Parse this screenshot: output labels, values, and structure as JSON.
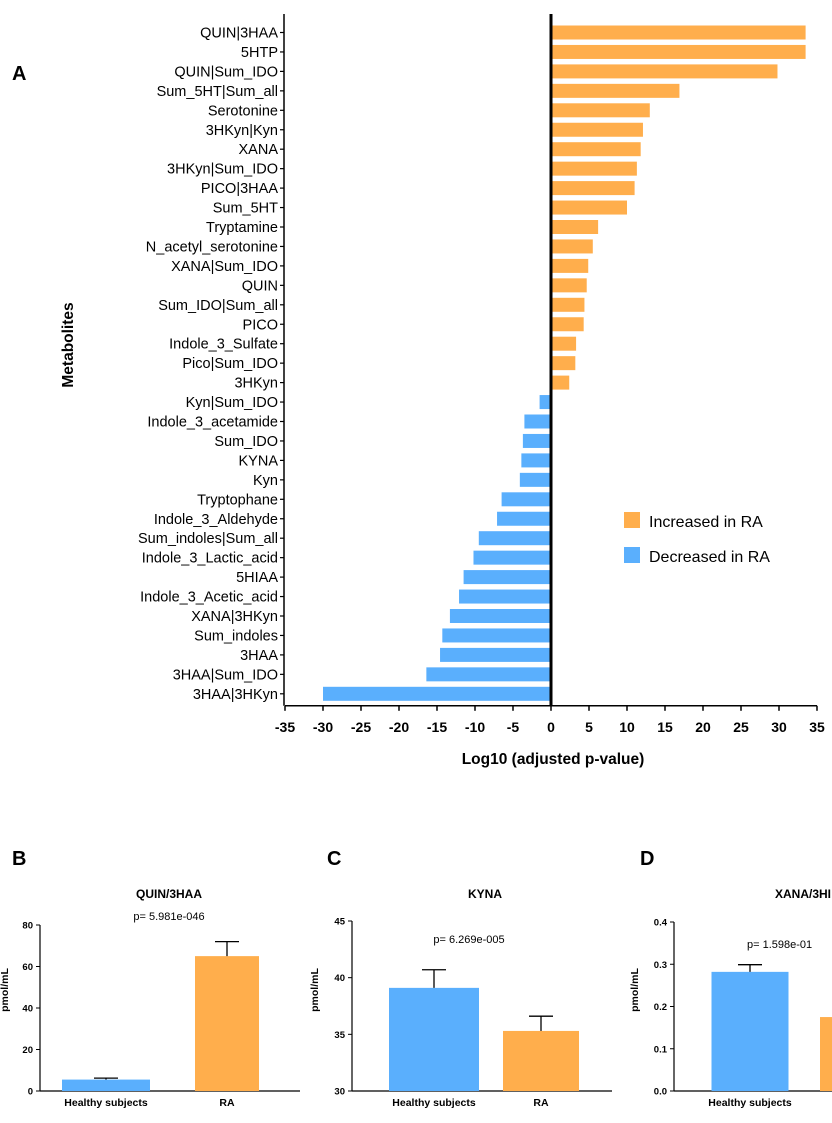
{
  "colors": {
    "increased": "#FFAE4C",
    "decreased": "#5AAFFD",
    "axis": "#000000"
  },
  "panel_labels": {
    "A": "A",
    "B": "B",
    "C": "C",
    "D": "D"
  },
  "legend": {
    "increased": "Increased in RA",
    "decreased": "Decreased in RA"
  },
  "chart_data": [
    {
      "panel": "A",
      "type": "bar",
      "orientation": "horizontal",
      "xlabel": "Log10 (adjusted p-value)",
      "ylabel": "Metabolites",
      "xlim": [
        -35,
        35
      ],
      "xticks": [
        -35,
        -30,
        -25,
        -20,
        -15,
        -10,
        -5,
        0,
        5,
        10,
        15,
        20,
        25,
        30,
        35
      ],
      "legend_position": "right",
      "categories": [
        "QUIN|3HAA",
        "5HTP",
        "QUIN|Sum_IDO",
        "Sum_5HT|Sum_all",
        "Serotonine",
        "3HKyn|Kyn",
        "XANA",
        "3HKyn|Sum_IDO",
        "PICO|3HAA",
        "Sum_5HT",
        "Tryptamine",
        "N_acetyl_serotonine",
        "XANA|Sum_IDO",
        "QUIN",
        "Sum_IDO|Sum_all",
        "PICO",
        "Indole_3_Sulfate",
        "Pico|Sum_IDO",
        "3HKyn",
        "Kyn|Sum_IDO",
        "Indole_3_acetamide",
        "Sum_IDO",
        "KYNA",
        "Kyn",
        "Tryptophane",
        "Indole_3_Aldehyde",
        "Sum_indoles|Sum_all",
        "Indole_3_Lactic_acid",
        "5HIAA",
        "Indole_3_Acetic_acid",
        "XANA|3HKyn",
        "Sum_indoles",
        "3HAA",
        "3HAA|Sum_IDO",
        "3HAA|3HKyn"
      ],
      "values": [
        33.5,
        33.5,
        29.8,
        16.9,
        13.0,
        12.1,
        11.8,
        11.3,
        11.0,
        10.0,
        6.2,
        5.5,
        4.9,
        4.7,
        4.4,
        4.3,
        3.3,
        3.2,
        2.4,
        -1.5,
        -3.5,
        -3.7,
        -3.9,
        -4.1,
        -6.5,
        -7.1,
        -9.5,
        -10.2,
        -11.5,
        -12.1,
        -13.3,
        -14.3,
        -14.6,
        -16.4,
        -30.0
      ],
      "series": [
        {
          "name": "Increased in RA",
          "color": "#FFAE4C"
        },
        {
          "name": "Decreased in RA",
          "color": "#5AAFFD"
        }
      ]
    },
    {
      "panel": "B",
      "type": "bar",
      "title": "QUIN/3HAA",
      "annotation": "p= 5.981e-046",
      "ylabel": "pmol/mL",
      "ylim": [
        0,
        80
      ],
      "yticks": [
        0,
        20,
        40,
        60,
        80
      ],
      "categories": [
        "Healthy subjects",
        "RA"
      ],
      "values": [
        5.5,
        65.0
      ],
      "errors": [
        0.7,
        7.0
      ],
      "colors": [
        "#5AAFFD",
        "#FFAE4C"
      ]
    },
    {
      "panel": "C",
      "type": "bar",
      "title": "KYNA",
      "annotation": "p= 6.269e-005",
      "ylabel": "pmol/mL",
      "ylim": [
        30,
        45
      ],
      "yticks": [
        30,
        35,
        40,
        45
      ],
      "categories": [
        "Healthy subjects",
        "RA"
      ],
      "values": [
        39.1,
        35.3
      ],
      "errors": [
        1.6,
        1.3
      ],
      "colors": [
        "#5AAFFD",
        "#FFAE4C"
      ]
    },
    {
      "panel": "D",
      "type": "bar",
      "title": "XANA/3HI",
      "annotation": "p= 1.598e-01",
      "ylabel": "pmol/mL",
      "ylim": [
        0.0,
        0.4
      ],
      "yticks": [
        "0.0",
        "0.1",
        "0.2",
        "0.3",
        "0.4"
      ],
      "categories": [
        "Healthy subjects",
        ""
      ],
      "values": [
        0.282,
        0.175
      ],
      "errors": [
        0.017,
        null
      ],
      "colors": [
        "#5AAFFD",
        "#FFAE4C"
      ]
    }
  ]
}
